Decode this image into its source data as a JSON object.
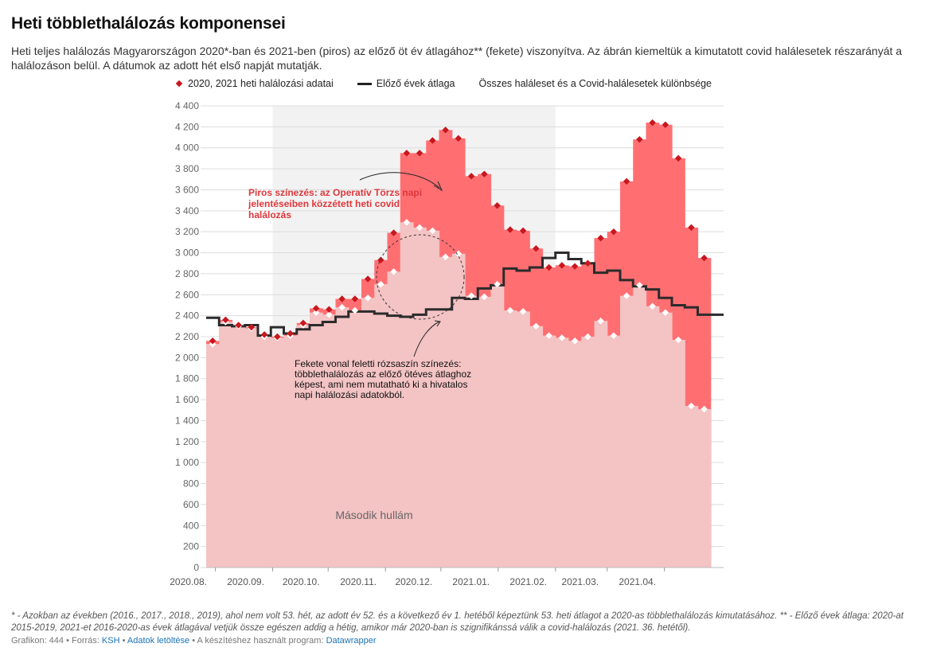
{
  "title": "Heti többlethalálozás komponensei",
  "subtitle": "Heti teljes halálozás Magyarországon 2020*-ban és 2021-ben (piros) az előző öt év átlagához** (fekete) viszonyítva. Az ábrán kiemeltük a kimutatott covid halálesetek részarányát a halálozáson belül. A dátumok az adott hét első napját mutatják.",
  "legend": {
    "deaths": "2020, 2021 heti halálozási adatai",
    "average": "Előző évek átlaga",
    "difference": "Összes haláleset és a Covid-halálesetek különbsége"
  },
  "annotations": {
    "red": [
      "Piros színezés: az Operatív Törzs napi",
      "jelentéseiben közzétett heti covid",
      "halálozás"
    ],
    "pink": [
      "Fekete vonal feletti rózsaszín színezés:",
      "többlethalálozás az előző ötéves átlaghoz",
      "képest, ami nem mutatható ki a hivatalos",
      "napi halálozási adatokból."
    ],
    "wave": "Második hullám"
  },
  "colors": {
    "covid_red": "#ff6f72",
    "pink": "#f4c3c4",
    "marker_red": "#c8171e",
    "average_line": "#2b2b2b",
    "shade": "#f2f2f2"
  },
  "chart_data": {
    "type": "area",
    "x_unit": "week starting date (ISO week)",
    "x": [
      "2020-07-27",
      "2020-08-03",
      "2020-08-10",
      "2020-08-17",
      "2020-08-24",
      "2020-08-31",
      "2020-09-07",
      "2020-09-14",
      "2020-09-21",
      "2020-09-28",
      "2020-10-05",
      "2020-10-12",
      "2020-10-19",
      "2020-10-26",
      "2020-11-02",
      "2020-11-09",
      "2020-11-16",
      "2020-11-23",
      "2020-11-30",
      "2020-12-07",
      "2020-12-14",
      "2020-12-21",
      "2020-12-28",
      "2021-01-04",
      "2021-01-11",
      "2021-01-18",
      "2021-01-25",
      "2021-02-01",
      "2021-02-08",
      "2021-02-15",
      "2021-02-22",
      "2021-03-01",
      "2021-03-08",
      "2021-03-15",
      "2021-03-22",
      "2021-03-29",
      "2021-04-05",
      "2021-04-12",
      "2021-04-19",
      "2021-04-26"
    ],
    "series": [
      {
        "name": "2020, 2021 heti halálozási adatai",
        "values": [
          2160,
          2360,
          2310,
          2290,
          2220,
          2200,
          2230,
          2330,
          2470,
          2460,
          2560,
          2560,
          2750,
          2930,
          3190,
          3950,
          3950,
          4070,
          4170,
          4090,
          3730,
          3750,
          3450,
          3220,
          3210,
          3040,
          2860,
          2880,
          2870,
          2900,
          3140,
          3200,
          3680,
          4080,
          4240,
          4220,
          3900,
          3240,
          2950,
          null
        ]
      },
      {
        "name": "Előző évek átlaga",
        "values": [
          2380,
          2310,
          2300,
          2310,
          2210,
          2290,
          2230,
          2270,
          2310,
          2340,
          2390,
          2440,
          2440,
          2420,
          2400,
          2390,
          2410,
          2460,
          2460,
          2570,
          2560,
          2660,
          2690,
          2850,
          2830,
          2860,
          2950,
          3000,
          2940,
          2900,
          2810,
          2830,
          2740,
          2680,
          2650,
          2570,
          2500,
          2480,
          2410,
          2410
        ]
      },
      {
        "name": "Összes haláleset és a Covid-halálesetek különbsége",
        "values": [
          2130,
          2340,
          2300,
          2280,
          2200,
          2190,
          2210,
          2310,
          2430,
          2410,
          2480,
          2450,
          2570,
          2700,
          2820,
          3290,
          3240,
          3210,
          2960,
          2990,
          2590,
          2580,
          2700,
          2450,
          2440,
          2300,
          2210,
          2190,
          2160,
          2200,
          2350,
          2210,
          2590,
          2690,
          2490,
          2430,
          2170,
          1540,
          1510,
          null
        ]
      }
    ],
    "ylim": [
      0,
      4400
    ],
    "yticks": [
      "0",
      "200",
      "400",
      "600",
      "800",
      "1 000",
      "1 200",
      "1 400",
      "1 600",
      "1 800",
      "2 000",
      "2 200",
      "2 400",
      "2 600",
      "2 800",
      "3 000",
      "3 200",
      "3 400",
      "3 600",
      "3 800",
      "4 000",
      "4 200",
      "4 400"
    ],
    "xticks": [
      "2020.08.",
      "2020.09.",
      "2020.10.",
      "2020.11.",
      "2020.12.",
      "2021.01.",
      "2021.02.",
      "2021.03.",
      "2021.04."
    ],
    "highlight_range": [
      "2020-09-01",
      "2021-02-01"
    ],
    "grid": true
  },
  "note": "* - Azokban az években (2016., 2017., 2018., 2019), ahol nem volt 53. hét, az adott év 52. és a következő év 1. hetéből képeztünk 53. heti átlagot a 2020-as többlethalálozás kimutatásához. ** - Előző évek átlaga: 2020-at 2015-2019, 2021-et 2016-2020-as évek átlagával vetjük össze egészen addig a hétig, amikor már 2020-ban is szignifikánssá válik a covid-halálozás (2021. 36. hetétől).",
  "footer": {
    "prefix": "Grafikon: 444 • Forrás: ",
    "source": "KSH",
    "sep1": " • ",
    "download": "Adatok letöltése",
    "sep2": " • A készítéshez használt program: ",
    "tool": "Datawrapper"
  }
}
